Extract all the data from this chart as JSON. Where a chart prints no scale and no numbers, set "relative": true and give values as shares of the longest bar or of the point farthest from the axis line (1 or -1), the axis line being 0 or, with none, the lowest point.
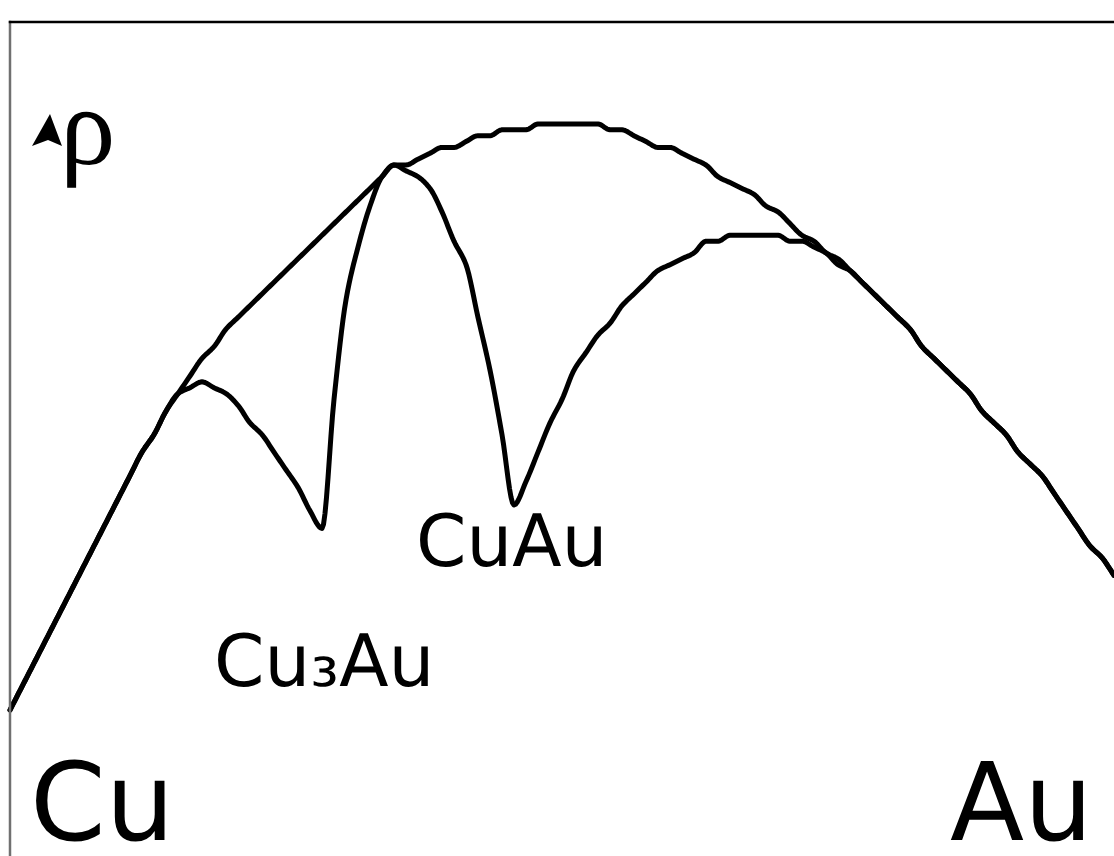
{
  "chart_data": {
    "type": "line",
    "relative": true,
    "ylabel": "ρ",
    "categories": [
      null,
      null,
      null,
      null,
      null,
      null,
      null,
      null,
      null,
      null,
      null,
      null,
      null,
      null,
      null,
      null,
      null,
      null,
      null,
      null,
      null,
      null,
      null,
      null,
      null,
      null,
      null,
      null,
      null,
      null,
      null,
      null,
      null,
      null,
      null,
      null,
      null,
      null,
      null,
      null,
      null,
      null,
      null,
      null,
      null,
      null,
      null,
      null,
      null,
      null,
      null,
      null,
      null,
      null,
      null,
      null,
      null,
      null,
      null,
      null,
      null,
      null,
      null,
      null,
      null,
      null,
      null,
      null,
      null,
      null,
      null,
      null,
      null,
      null,
      null,
      null,
      null,
      null,
      null,
      null,
      null,
      null,
      null,
      null,
      null,
      null,
      null,
      null,
      null,
      null,
      null,
      null,
      null
    ],
    "series": [
      {
        "color": "#000000",
        "values": [
          0.0,
          0.04,
          0.08,
          0.12,
          0.16,
          0.2,
          0.24,
          0.28,
          0.32,
          0.36,
          0.4,
          0.44,
          0.47,
          0.51,
          0.54,
          0.57,
          0.6,
          0.62,
          0.65,
          0.67,
          0.69,
          0.71,
          0.73,
          0.75,
          0.77,
          0.79,
          0.81,
          0.83,
          0.85,
          0.87,
          0.89,
          0.91,
          0.93,
          0.93,
          0.94,
          0.95,
          0.96,
          0.96,
          0.97,
          0.98,
          0.98,
          0.99,
          0.99,
          0.99,
          1.0,
          1.0,
          1.0,
          1.0,
          1.0,
          1.0,
          0.99,
          0.99,
          0.98,
          0.97,
          0.96,
          0.96,
          0.95,
          0.94,
          0.93,
          0.91,
          0.9,
          0.89,
          0.88,
          0.86,
          0.85,
          0.83,
          0.81,
          0.8,
          0.78,
          0.77,
          0.75,
          0.73,
          0.71,
          0.69,
          0.67,
          0.65,
          0.62,
          0.6,
          0.58,
          0.56,
          0.54,
          0.51,
          0.49,
          0.47,
          0.44,
          0.42,
          0.4,
          0.37,
          0.34,
          0.31,
          0.28,
          0.26,
          0.23
        ]
      },
      {
        "color": "#000000",
        "values": [
          0.0,
          0.04,
          0.08,
          0.12,
          0.16,
          0.2,
          0.24,
          0.28,
          0.32,
          0.36,
          0.4,
          0.44,
          0.47,
          0.51,
          0.54,
          0.55,
          0.56,
          0.55,
          0.54,
          0.52,
          0.49,
          0.47,
          0.44,
          0.41,
          0.38,
          0.34,
          0.31,
          0.53,
          0.7,
          0.79,
          0.86,
          0.91,
          0.93,
          0.92,
          0.91,
          0.89,
          0.85,
          0.8,
          0.76,
          0.67,
          0.58,
          0.47,
          0.35,
          0.39,
          0.44,
          0.49,
          0.53,
          0.58,
          0.61,
          0.64,
          0.66,
          0.69,
          0.71,
          0.73,
          0.75,
          0.76,
          0.77,
          0.78,
          0.8,
          0.8,
          0.81,
          0.81,
          0.81,
          0.81,
          0.81,
          0.8,
          0.8,
          0.79,
          0.78,
          0.76,
          0.75,
          0.73,
          0.71,
          0.69,
          0.67,
          0.65,
          0.62,
          0.6,
          0.58,
          0.56,
          0.54,
          0.51,
          0.49,
          0.47,
          0.44,
          0.42,
          0.4,
          0.37,
          0.34,
          0.31,
          0.28,
          0.26,
          0.23
        ]
      }
    ],
    "annotations": [
      "Cu₃Au",
      "CuAu",
      "Cu",
      "Au"
    ]
  }
}
